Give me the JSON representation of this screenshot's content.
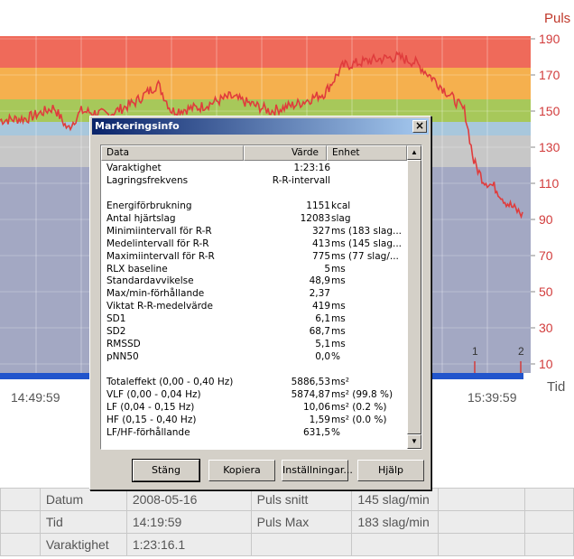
{
  "chart": {
    "y_axis_label": "Puls",
    "x_axis_label": "Tid",
    "y_ticks": [
      "190",
      "170",
      "150",
      "130",
      "110",
      "90",
      "70",
      "50",
      "30",
      "10"
    ],
    "x_ticks": [
      "14:49:59",
      "15:39:59"
    ],
    "markers": [
      "1",
      "2"
    ],
    "zone_colors": [
      "#ef6a5a",
      "#f5b04e",
      "#a7c85a",
      "#a8c7dc",
      "#c7c7c7",
      "#a3a8c3"
    ],
    "line_color": "#e03c3c",
    "series_color": "#2255cc"
  },
  "dialog": {
    "title": "Markeringsinfo",
    "columns": {
      "data": "Data",
      "value": "Värde",
      "unit": "Enhet"
    },
    "rows": [
      {
        "name": "Varaktighet",
        "value": "1:23:16",
        "unit": ""
      },
      {
        "name": "Lagringsfrekvens",
        "value": "R-R-intervall",
        "unit": ""
      },
      {
        "name": "",
        "value": "",
        "unit": ""
      },
      {
        "name": "Energiförbrukning",
        "value": "1151",
        "unit": "kcal"
      },
      {
        "name": "Antal hjärtslag",
        "value": "12083",
        "unit": "slag"
      },
      {
        "name": "Minimiintervall för R-R",
        "value": "327",
        "unit": "ms (183 slag..."
      },
      {
        "name": "Medelintervall för R-R",
        "value": "413",
        "unit": "ms (145 slag..."
      },
      {
        "name": "Maximiintervall för R-R",
        "value": "775",
        "unit": "ms (77 slag/..."
      },
      {
        "name": "RLX baseline",
        "value": "5",
        "unit": "ms"
      },
      {
        "name": "Standardavvikelse",
        "value": "48,9",
        "unit": "ms"
      },
      {
        "name": "Max/min-förhållande",
        "value": "2,37",
        "unit": ""
      },
      {
        "name": "Viktat R-R-medelvärde",
        "value": "419",
        "unit": "ms"
      },
      {
        "name": "SD1",
        "value": "6,1",
        "unit": "ms"
      },
      {
        "name": "SD2",
        "value": "68,7",
        "unit": "ms"
      },
      {
        "name": "RMSSD",
        "value": "5,1",
        "unit": "ms"
      },
      {
        "name": "pNN50",
        "value": "0,0",
        "unit": "%"
      },
      {
        "name": "",
        "value": "",
        "unit": ""
      },
      {
        "name": "Totaleffekt (0,00 - 0,40 Hz)",
        "value": "5886,53",
        "unit": "ms²"
      },
      {
        "name": "VLF (0,00 - 0,04 Hz)",
        "value": "5874,87",
        "unit": "ms² (99.8 %)"
      },
      {
        "name": "LF (0,04 - 0,15 Hz)",
        "value": "10,06",
        "unit": "ms² (0.2 %)"
      },
      {
        "name": "HF (0,15 - 0,40 Hz)",
        "value": "1,59",
        "unit": "ms² (0.0 %)"
      },
      {
        "name": "LF/HF-förhållande",
        "value": "631,5",
        "unit": "%"
      }
    ],
    "buttons": {
      "close": "Stäng",
      "copy": "Kopiera",
      "settings": "Inställningar...",
      "help": "Hjälp"
    }
  },
  "info_table": {
    "rows": [
      {
        "label": "Datum",
        "value": "2008-05-16",
        "label2": "Puls snitt",
        "value2": "145 slag/min"
      },
      {
        "label": "Tid",
        "value": "14:19:59",
        "label2": "Puls Max",
        "value2": "183 slag/min"
      },
      {
        "label": "Varaktighet",
        "value": "1:23:16.1",
        "label2": "",
        "value2": ""
      }
    ]
  }
}
